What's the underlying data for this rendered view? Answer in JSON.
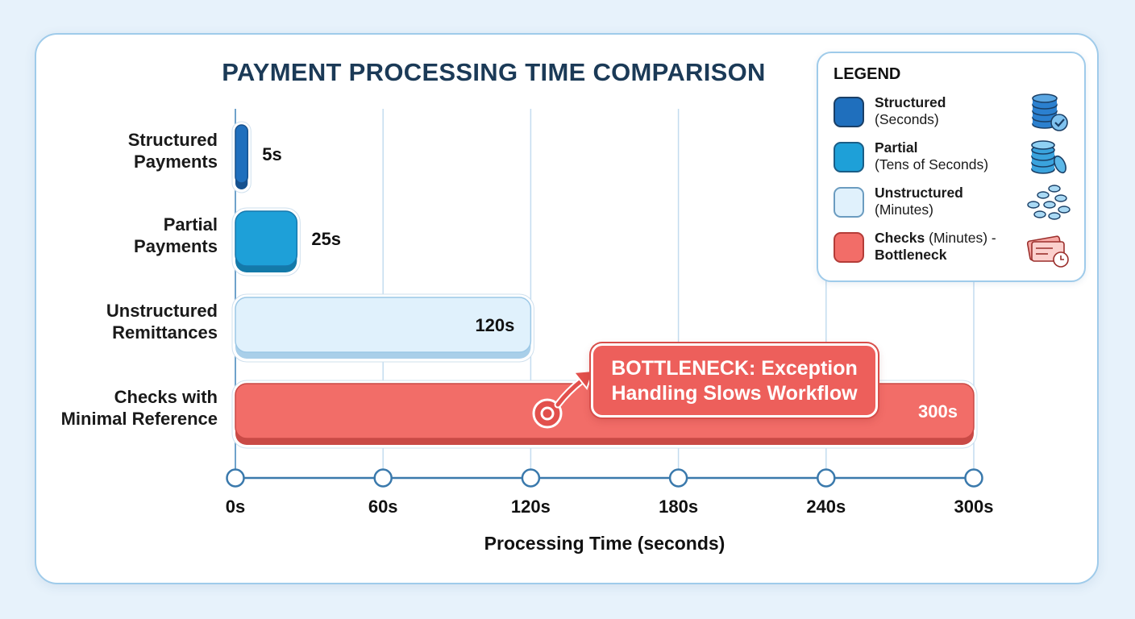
{
  "chart_data": {
    "type": "bar",
    "orientation": "horizontal",
    "title": "PAYMENT PROCESSING TIME COMPARISON",
    "xlabel": "Processing Time (seconds)",
    "ylabel": "",
    "xlim": [
      0,
      300
    ],
    "x_ticks": [
      0,
      60,
      120,
      180,
      240,
      300
    ],
    "x_tick_labels": [
      "0s",
      "60s",
      "120s",
      "180s",
      "240s",
      "300s"
    ],
    "grid": true,
    "legend_position": "top-right",
    "categories": [
      [
        "Structured",
        "Payments"
      ],
      [
        "Partial",
        "Payments"
      ],
      [
        "Unstructured",
        "Remittances"
      ],
      [
        "Checks with",
        "Minimal Reference"
      ]
    ],
    "values": [
      5,
      25,
      120,
      300
    ],
    "value_labels": [
      "5s",
      "25s",
      "120s",
      "300s"
    ],
    "colors": [
      "#1f6fbd",
      "#1ea0d8",
      "#e0f1fc",
      "#f26d68"
    ],
    "annotation": {
      "lines": [
        "BOTTLENECK: Exception",
        "Handling Slows Workflow"
      ],
      "points_to_category": 3
    }
  },
  "legend": {
    "title": "LEGEND",
    "items": [
      {
        "name": "Structured",
        "detail": "(Seconds)",
        "color": "#1f6fbd",
        "icon": "coin-stack-check-icon"
      },
      {
        "name": "Partial",
        "detail": "(Tens of Seconds)",
        "color": "#1ea0d8",
        "icon": "coin-stack-icon"
      },
      {
        "name": "Unstructured",
        "detail": "(Minutes)",
        "color": "#e0f1fc",
        "icon": "scattered-coins-icon"
      },
      {
        "name": "Checks",
        "detail": " (Minutes) -",
        "name2": "Bottleneck",
        "color": "#f26d68",
        "icon": "check-clock-icon"
      }
    ]
  }
}
